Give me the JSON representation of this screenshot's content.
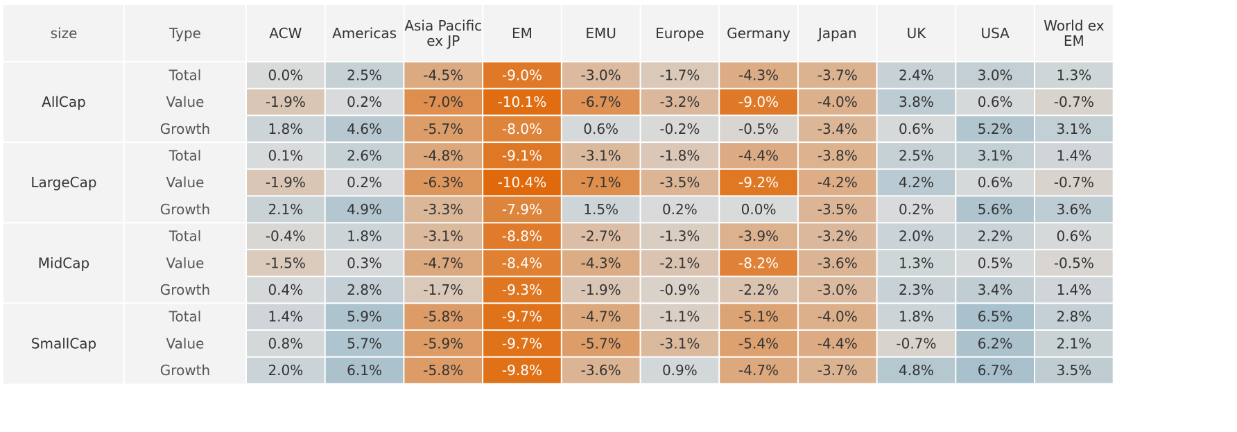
{
  "chart_data": {
    "type": "heatmap",
    "row_header_labels": [
      "size",
      "Type"
    ],
    "columns": [
      "ACW",
      "Americas",
      "Asia Pacific\nex JP",
      "EM",
      "EMU",
      "Europe",
      "Germany",
      "Japan",
      "UK",
      "USA",
      "World ex\nEM"
    ],
    "groups": [
      {
        "size": "AllCap",
        "rows": [
          {
            "type": "Total",
            "values": [
              0.0,
              2.5,
              -4.5,
              -9.0,
              -3.0,
              -1.7,
              -4.3,
              -3.7,
              2.4,
              3.0,
              1.3
            ]
          },
          {
            "type": "Value",
            "values": [
              -1.9,
              0.2,
              -7.0,
              -10.1,
              -6.7,
              -3.2,
              -9.0,
              -4.0,
              3.8,
              0.6,
              -0.7
            ]
          },
          {
            "type": "Growth",
            "values": [
              1.8,
              4.6,
              -5.7,
              -8.0,
              0.6,
              -0.2,
              -0.5,
              -3.4,
              0.6,
              5.2,
              3.1
            ]
          }
        ]
      },
      {
        "size": "LargeCap",
        "rows": [
          {
            "type": "Total",
            "values": [
              0.1,
              2.6,
              -4.8,
              -9.1,
              -3.1,
              -1.8,
              -4.4,
              -3.8,
              2.5,
              3.1,
              1.4
            ]
          },
          {
            "type": "Value",
            "values": [
              -1.9,
              0.2,
              -6.3,
              -10.4,
              -7.1,
              -3.5,
              -9.2,
              -4.2,
              4.2,
              0.6,
              -0.7
            ]
          },
          {
            "type": "Growth",
            "values": [
              2.1,
              4.9,
              -3.3,
              -7.9,
              1.5,
              0.2,
              0.0,
              -3.5,
              0.2,
              5.6,
              3.6
            ]
          }
        ]
      },
      {
        "size": "MidCap",
        "rows": [
          {
            "type": "Total",
            "values": [
              -0.4,
              1.8,
              -3.1,
              -8.8,
              -2.7,
              -1.3,
              -3.9,
              -3.2,
              2.0,
              2.2,
              0.6
            ]
          },
          {
            "type": "Value",
            "values": [
              -1.5,
              0.3,
              -4.7,
              -8.4,
              -4.3,
              -2.1,
              -8.2,
              -3.6,
              1.3,
              0.5,
              -0.5
            ]
          },
          {
            "type": "Growth",
            "values": [
              0.4,
              2.8,
              -1.7,
              -9.3,
              -1.9,
              -0.9,
              -2.2,
              -3.0,
              2.3,
              3.4,
              1.4
            ]
          }
        ]
      },
      {
        "size": "SmallCap",
        "rows": [
          {
            "type": "Total",
            "values": [
              1.4,
              5.9,
              -5.8,
              -9.7,
              -4.7,
              -1.1,
              -5.1,
              -4.0,
              1.8,
              6.5,
              2.8
            ]
          },
          {
            "type": "Value",
            "values": [
              0.8,
              5.7,
              -5.9,
              -9.7,
              -5.7,
              -3.1,
              -5.4,
              -4.4,
              -0.7,
              6.2,
              2.1
            ]
          },
          {
            "type": "Growth",
            "values": [
              2.0,
              6.1,
              -5.8,
              -9.8,
              -3.6,
              0.9,
              -4.7,
              -3.7,
              4.8,
              6.7,
              3.5
            ]
          }
        ]
      }
    ],
    "value_format": "percent_1dp",
    "color_scale": {
      "negative": "#e06a0b",
      "neutral": "#d9dbdb",
      "positive": "#a7c0cc",
      "min": -10.4,
      "max": 6.7
    },
    "header_background": "#f3f3f3",
    "label_color": "#555555"
  }
}
